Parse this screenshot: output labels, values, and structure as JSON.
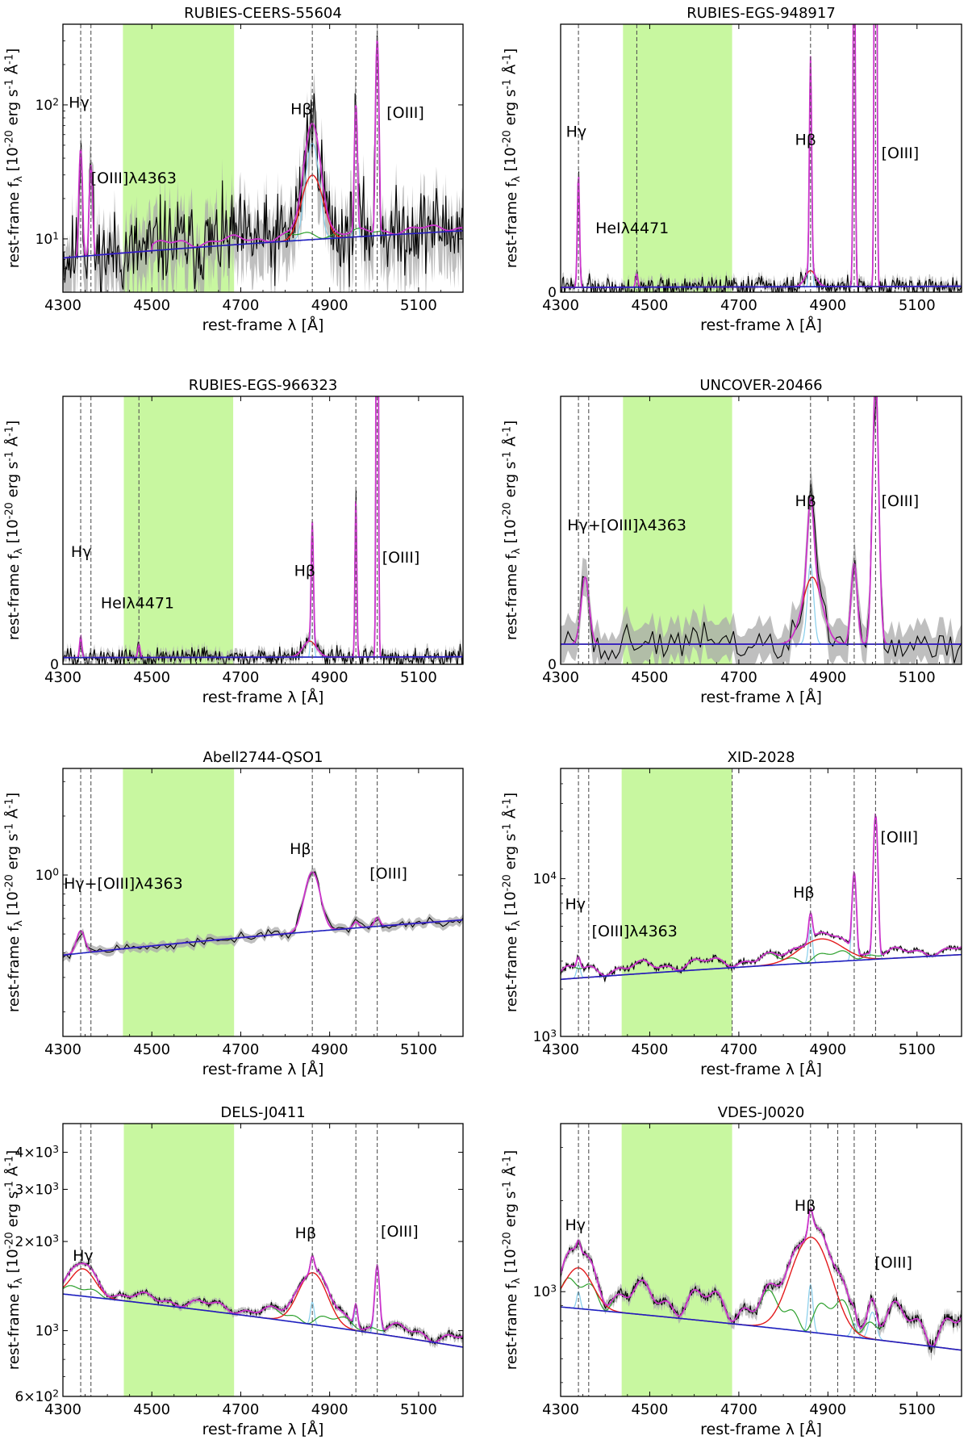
{
  "figure": {
    "xlabel": "rest-frame λ [Å]",
    "ylabel": "rest-frame f_λ [10^{-20} erg s^{-1} Å^{-1}]"
  },
  "colors": {
    "data": "#000000",
    "uncertainty": "#a9a9a9",
    "total_model": "#cc33cc",
    "narrow_lines": "#87ceeb",
    "broad_lines": "#e31a1c",
    "feii": "#2ca02c",
    "continuum": "#1f1fbf",
    "masked_band": "#c8f7a0",
    "line_markers": "#555555"
  },
  "chart_data": [
    {
      "type": "line",
      "title": "RUBIES-CEERS-55604",
      "yscale": "log",
      "xlim": [
        4300,
        5200
      ],
      "ylim": [
        4,
        400
      ],
      "xticks": [
        4300,
        4500,
        4700,
        4900,
        5100
      ],
      "yticks": [
        {
          "v": 10,
          "label": "10^1"
        },
        {
          "v": 100,
          "label": "10^2"
        }
      ],
      "masked_band": [
        4435,
        4685
      ],
      "marker_lines": [
        4340,
        4363,
        4861,
        4959,
        5007
      ],
      "labels": [
        {
          "text": "Hγ",
          "x": 4313,
          "y": 95
        },
        {
          "text": "[OIII]λ4363",
          "x": 4363,
          "y": 26
        },
        {
          "text": "Hβ",
          "x": 4812,
          "y": 85
        },
        {
          "text": "[OIII]",
          "x": 5028,
          "y": 80
        }
      ],
      "continuum": [
        [
          4300,
          7.2
        ],
        [
          5200,
          11.5
        ]
      ],
      "lines": [
        {
          "c": 4340,
          "s": 3,
          "a": 40
        },
        {
          "c": 4363,
          "s": 3,
          "a": 28
        },
        {
          "c": 4861,
          "s": 12,
          "a": 42
        },
        {
          "c": 4959,
          "s": 2.5,
          "a": 90
        },
        {
          "c": 5007,
          "s": 2.5,
          "a": 300
        }
      ],
      "feii": [
        4500,
        5200,
        1.5
      ],
      "broad": [
        4861,
        20,
        20
      ],
      "noise": 0.45,
      "seed": 11,
      "npts": 420,
      "err": 0.45
    },
    {
      "type": "line",
      "title": "RUBIES-EGS-948917",
      "yscale": "linear",
      "xlim": [
        4300,
        5200
      ],
      "ylim": [
        0,
        100
      ],
      "xticks": [
        4300,
        4500,
        4700,
        4900,
        5100
      ],
      "yticks": [
        {
          "v": 0,
          "label": "0"
        }
      ],
      "masked_band": [
        4440,
        4685
      ],
      "marker_lines": [
        4340,
        4471,
        4861,
        4959,
        5007
      ],
      "labels": [
        {
          "text": "Hγ",
          "x": 4312,
          "y": 58
        },
        {
          "text": "HeIλ4471",
          "x": 4378,
          "y": 22
        },
        {
          "text": "Hβ",
          "x": 4826,
          "y": 55
        },
        {
          "text": "[OIII]",
          "x": 5020,
          "y": 50
        }
      ],
      "continuum": [
        [
          4300,
          1.8
        ],
        [
          5200,
          2.2
        ]
      ],
      "lines": [
        {
          "c": 4340,
          "s": 2.5,
          "a": 42
        },
        {
          "c": 4471,
          "s": 2.5,
          "a": 5
        },
        {
          "c": 4861,
          "s": 2.5,
          "a": 80
        },
        {
          "c": 4959,
          "s": 2.2,
          "a": 160
        },
        {
          "c": 5007,
          "s": 2.2,
          "a": 400
        }
      ],
      "feii": [
        4500,
        5200,
        0
      ],
      "broad": [
        4861,
        12,
        6
      ],
      "noise": 2.5,
      "seed": 22,
      "npts": 420,
      "err": 2.0
    },
    {
      "type": "line",
      "title": "RUBIES-EGS-966323",
      "yscale": "linear",
      "xlim": [
        4300,
        5200
      ],
      "ylim": [
        0,
        100
      ],
      "xticks": [
        4300,
        4500,
        4700,
        4900,
        5100
      ],
      "yticks": [
        {
          "v": 0,
          "label": "0"
        }
      ],
      "masked_band": [
        4437,
        4683
      ],
      "marker_lines": [
        4340,
        4363,
        4471,
        4861,
        4959,
        5007
      ],
      "labels": [
        {
          "text": "Hγ",
          "x": 4318,
          "y": 40
        },
        {
          "text": "HeIλ4471",
          "x": 4385,
          "y": 21
        },
        {
          "text": "Hβ",
          "x": 4820,
          "y": 33
        },
        {
          "text": "[OIII]",
          "x": 5018,
          "y": 38
        }
      ],
      "continuum": [
        [
          4300,
          2.5
        ],
        [
          5200,
          2.8
        ]
      ],
      "lines": [
        {
          "c": 4340,
          "s": 2.5,
          "a": 8
        },
        {
          "c": 4471,
          "s": 2.5,
          "a": 5
        },
        {
          "c": 4861,
          "s": 2.5,
          "a": 45
        },
        {
          "c": 4959,
          "s": 2.0,
          "a": 60
        },
        {
          "c": 5007,
          "s": 2.0,
          "a": 300
        }
      ],
      "feii": [
        4500,
        5200,
        0
      ],
      "broad": [
        4855,
        15,
        6
      ],
      "noise": 2.2,
      "seed": 33,
      "npts": 420,
      "err": 2.0
    },
    {
      "type": "line",
      "title": "UNCOVER-20466",
      "yscale": "linear",
      "xlim": [
        4300,
        5200
      ],
      "ylim": [
        0,
        100
      ],
      "xticks": [
        4300,
        4500,
        4700,
        4900,
        5100
      ],
      "yticks": [
        {
          "v": 0,
          "label": "0"
        }
      ],
      "masked_band": [
        4440,
        4685
      ],
      "marker_lines": [
        4340,
        4363,
        4861,
        4959,
        5007
      ],
      "labels": [
        {
          "text": "Hγ+[OIII]λ4363",
          "x": 4315,
          "y": 50
        },
        {
          "text": "Hβ",
          "x": 4826,
          "y": 59
        },
        {
          "text": "[OIII]",
          "x": 5020,
          "y": 59
        }
      ],
      "continuum": [
        [
          4300,
          7.5
        ],
        [
          5200,
          7.5
        ]
      ],
      "lines": [
        {
          "c": 4355,
          "s": 9,
          "a": 25
        },
        {
          "c": 4861,
          "s": 7,
          "a": 30
        },
        {
          "c": 4959,
          "s": 7,
          "a": 30
        },
        {
          "c": 5007,
          "s": 7,
          "a": 100
        }
      ],
      "feii": [
        4900,
        5200,
        0
      ],
      "broad": [
        4865,
        22,
        25
      ],
      "noise": 4.5,
      "seed": 44,
      "npts": 110,
      "err": 7.0
    },
    {
      "type": "line",
      "title": "Abell2744-QSO1",
      "yscale": "log",
      "xlim": [
        4300,
        5200
      ],
      "ylim": [
        0.15,
        3.5
      ],
      "xticks": [
        4300,
        4500,
        4700,
        4900,
        5100
      ],
      "yticks": [
        {
          "v": 1,
          "label": "10^0"
        }
      ],
      "masked_band": [
        4435,
        4685
      ],
      "marker_lines": [
        4340,
        4363,
        4861,
        4959,
        5007
      ],
      "labels": [
        {
          "text": "Hγ+[OIII]λ4363",
          "x": 4302,
          "y": 0.85
        },
        {
          "text": "Hβ",
          "x": 4810,
          "y": 1.28
        },
        {
          "text": "[OIII]",
          "x": 4990,
          "y": 0.96
        }
      ],
      "continuum": [
        [
          4300,
          0.39
        ],
        [
          5200,
          0.59
        ]
      ],
      "lines": [
        {
          "c": 4340,
          "s": 9,
          "a": 0.12
        },
        {
          "c": 4861,
          "s": 16,
          "a": 0.52
        },
        {
          "c": 4959,
          "s": 6,
          "a": 0.04
        },
        {
          "c": 5007,
          "s": 6,
          "a": 0.06
        }
      ],
      "feii": [
        4500,
        5200,
        0
      ],
      "broad": [
        4865,
        16,
        0
      ],
      "noise": 0.035,
      "seed": 55,
      "npts": 120,
      "err": 0.05
    },
    {
      "type": "line",
      "title": "XID-2028",
      "yscale": "log",
      "xlim": [
        4300,
        5200
      ],
      "ylim": [
        1000,
        50000
      ],
      "xticks": [
        4300,
        4500,
        4700,
        4900,
        5100
      ],
      "yticks": [
        {
          "v": 1000,
          "label": "10^3"
        },
        {
          "v": 10000,
          "label": "10^4"
        }
      ],
      "masked_band": [
        4437,
        4685
      ],
      "marker_lines": [
        4340,
        4363,
        4685,
        4861,
        4959,
        5007
      ],
      "labels": [
        {
          "text": "Hγ",
          "x": 4310,
          "y": 6400
        },
        {
          "text": "[OIII]λ4363",
          "x": 4370,
          "y": 4300
        },
        {
          "text": "Hβ",
          "x": 4822,
          "y": 7600
        },
        {
          "text": "[OIII]",
          "x": 5018,
          "y": 17000
        }
      ],
      "continuum": [
        [
          4300,
          2300
        ],
        [
          5200,
          3300
        ]
      ],
      "lines": [
        {
          "c": 4340,
          "s": 4,
          "a": 500
        },
        {
          "c": 4861,
          "s": 4,
          "a": 2000
        },
        {
          "c": 4959,
          "s": 4,
          "a": 7500
        },
        {
          "c": 5007,
          "s": 4,
          "a": 22000
        }
      ],
      "feii": [
        4300,
        5200,
        500
      ],
      "broad": [
        4885,
        45,
        1200
      ],
      "noise": 90,
      "seed": 66,
      "npts": 500,
      "err": 80
    },
    {
      "type": "line",
      "title": "DELS-J0411",
      "yscale": "log",
      "xlim": [
        4300,
        5200
      ],
      "ylim": [
        600,
        5000
      ],
      "xticks": [
        4300,
        4500,
        4700,
        4900,
        5100
      ],
      "yticks": [
        {
          "v": 600,
          "label": "6 × 10^2"
        },
        {
          "v": 1000,
          "label": "10^3"
        },
        {
          "v": 2000,
          "label": "2 × 10^3"
        },
        {
          "v": 3000,
          "label": "3 × 10^3"
        },
        {
          "v": 4000,
          "label": "4 × 10^3"
        }
      ],
      "masked_band": [
        4437,
        4685
      ],
      "marker_lines": [
        4340,
        4363,
        4861,
        4959,
        5007
      ],
      "labels": [
        {
          "text": "Hγ",
          "x": 4322,
          "y": 1720
        },
        {
          "text": "Hβ",
          "x": 4822,
          "y": 2050
        },
        {
          "text": "[OIII]",
          "x": 5015,
          "y": 2080
        }
      ],
      "continuum": [
        [
          4300,
          1330
        ],
        [
          5200,
          880
        ]
      ],
      "lines": [
        {
          "c": 4861,
          "s": 4,
          "a": 200
        },
        {
          "c": 4959,
          "s": 4,
          "a": 200
        },
        {
          "c": 5007,
          "s": 5,
          "a": 650
        }
      ],
      "feii": [
        4300,
        5200,
        100
      ],
      "broad": [
        4862,
        30,
        520
      ],
      "broad2": [
        4345,
        26,
        310
      ],
      "noise": 18,
      "seed": 77,
      "npts": 500,
      "err": 30
    },
    {
      "type": "line",
      "title": "VDES-J0020",
      "yscale": "log",
      "xlim": [
        4300,
        5200
      ],
      "ylim": [
        450,
        3600
      ],
      "xticks": [
        4300,
        4500,
        4700,
        4900,
        5100
      ],
      "yticks": [
        {
          "v": 1000,
          "label": "10^3"
        }
      ],
      "masked_band": [
        4437,
        4685
      ],
      "marker_lines": [
        4340,
        4363,
        4861,
        4922,
        4959,
        5007
      ],
      "labels": [
        {
          "text": "Hγ",
          "x": 4310,
          "y": 1600
        },
        {
          "text": "Hβ",
          "x": 4825,
          "y": 1850
        },
        {
          "text": "[OIII]",
          "x": 5005,
          "y": 1200
        }
      ],
      "continuum": [
        [
          4300,
          890
        ],
        [
          5200,
          640
        ]
      ],
      "lines": [
        {
          "c": 4340,
          "s": 4,
          "a": 120
        },
        {
          "c": 4861,
          "s": 5,
          "a": 320
        },
        {
          "c": 4959,
          "s": 6,
          "a": 80
        },
        {
          "c": 5000,
          "s": 8,
          "a": 160
        }
      ],
      "feii": [
        4300,
        5200,
        230
      ],
      "broad": [
        4862,
        40,
        780
      ],
      "broad2": [
        4340,
        30,
        320
      ],
      "noise": 22,
      "seed": 88,
      "npts": 500,
      "err": 40
    }
  ]
}
